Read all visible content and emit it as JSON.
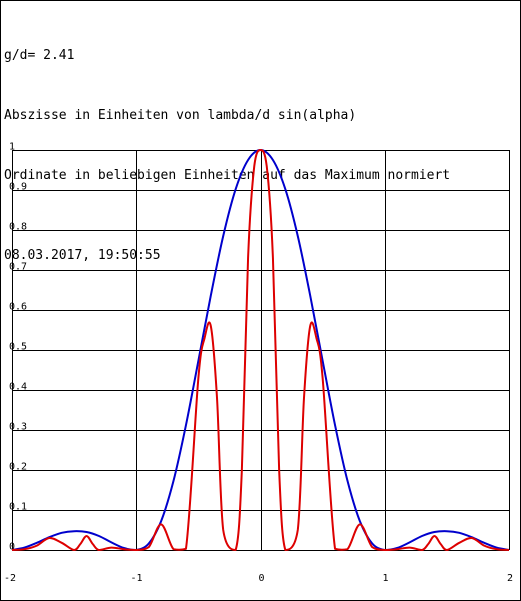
{
  "header": {
    "ratio_line": "g/d= 2.41",
    "xaxis_line": "Abszisse in Einheiten von lambda/d sin(alpha)",
    "yaxis_line": "Ordinate in beliebigen Einheiten auf das Maximum normiert",
    "timestamp": "08.03.2017, 19:50:55"
  },
  "chart_data": {
    "type": "line",
    "x_range": [
      -2,
      2
    ],
    "y_range": [
      0,
      1
    ],
    "grid": true,
    "x_ticks": [
      -2,
      -1,
      0,
      1,
      2
    ],
    "x_tick_labels": [
      "-2",
      "-1",
      "0",
      "1",
      "2"
    ],
    "y_ticks": [
      0,
      0.1,
      0.2,
      0.3,
      0.4,
      0.5,
      0.6,
      0.7,
      0.8,
      0.9,
      1
    ],
    "y_tick_labels": [
      "0",
      "0.1",
      "0.2",
      "0.3",
      "0.4",
      "0.5",
      "0.6",
      "0.7",
      "0.8",
      "0.9",
      "1"
    ],
    "series": [
      {
        "color": "#0000cc",
        "x": [
          -2,
          -1.9,
          -1.8,
          -1.7,
          -1.6,
          -1.5,
          -1.4,
          -1.3,
          -1.2,
          -1.1,
          -1.0,
          -0.9,
          -0.8,
          -0.7,
          -0.6,
          -0.5,
          -0.4,
          -0.3,
          -0.2,
          -0.1,
          0,
          0.1,
          0.2,
          0.3,
          0.4,
          0.5,
          0.6,
          0.7,
          0.8,
          0.9,
          1.0,
          1.1,
          1.2,
          1.3,
          1.4,
          1.5,
          1.6,
          1.7,
          1.8,
          1.9,
          2
        ],
        "y": [
          0.0,
          0.006,
          0.018,
          0.032,
          0.043,
          0.047,
          0.045,
          0.035,
          0.019,
          0.005,
          0.0,
          0.016,
          0.072,
          0.173,
          0.312,
          0.473,
          0.636,
          0.785,
          0.902,
          0.975,
          1.0,
          0.975,
          0.902,
          0.785,
          0.636,
          0.473,
          0.312,
          0.173,
          0.072,
          0.016,
          0.0,
          0.005,
          0.019,
          0.035,
          0.045,
          0.047,
          0.043,
          0.032,
          0.018,
          0.006,
          0.0
        ]
      },
      {
        "color": "#dd0000",
        "x": [
          -2,
          -1.9,
          -1.8,
          -1.7,
          -1.6,
          -1.5,
          -1.45,
          -1.4,
          -1.35,
          -1.3,
          -1.2,
          -1.1,
          -1.0,
          -0.9,
          -0.8,
          -0.7,
          -0.6,
          -0.5,
          -0.45,
          -0.4,
          -0.35,
          -0.3,
          -0.2,
          -0.15,
          -0.1,
          -0.05,
          0,
          0.05,
          0.1,
          0.15,
          0.2,
          0.3,
          0.35,
          0.4,
          0.45,
          0.5,
          0.6,
          0.7,
          0.8,
          0.9,
          1.0,
          1.1,
          1.2,
          1.3,
          1.35,
          1.4,
          1.45,
          1.5,
          1.6,
          1.7,
          1.8,
          1.9,
          2
        ],
        "y": [
          0.0,
          0.002,
          0.011,
          0.03,
          0.018,
          0.0,
          0.015,
          0.035,
          0.015,
          0.0,
          0.006,
          0.002,
          0.0,
          0.007,
          0.064,
          0.002,
          0.003,
          0.43,
          0.53,
          0.56,
          0.38,
          0.05,
          0.0,
          0.2,
          0.73,
          0.96,
          1.0,
          0.96,
          0.73,
          0.2,
          0.0,
          0.05,
          0.38,
          0.56,
          0.53,
          0.43,
          0.003,
          0.002,
          0.064,
          0.007,
          0.0,
          0.002,
          0.006,
          0.0,
          0.015,
          0.035,
          0.015,
          0.0,
          0.018,
          0.03,
          0.011,
          0.002,
          0.0
        ]
      }
    ]
  }
}
